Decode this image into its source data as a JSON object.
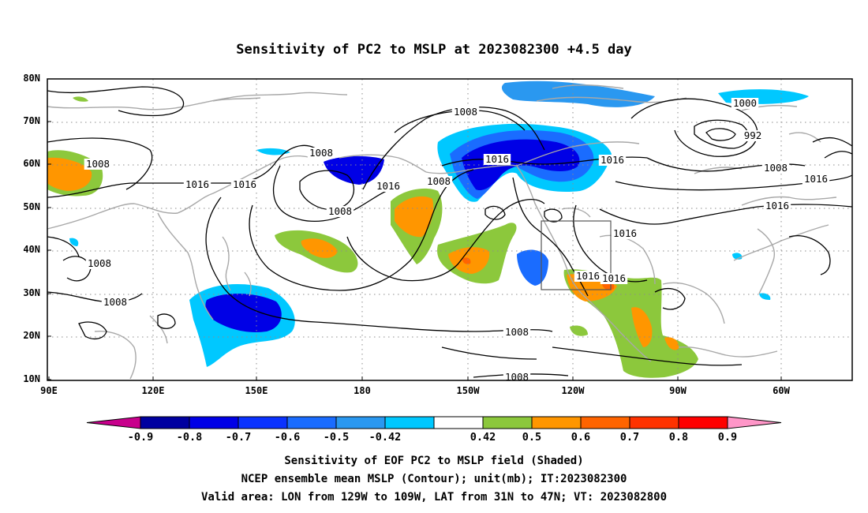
{
  "title": "Sensitivity of PC2 to MSLP at 2023082300 +4.5 day",
  "axes": {
    "x_ticks": [
      "90E",
      "120E",
      "150E",
      "180",
      "150W",
      "120W",
      "90W",
      "60W"
    ],
    "y_ticks": [
      "80N",
      "70N",
      "60N",
      "50N",
      "40N",
      "30N",
      "20N",
      "10N"
    ]
  },
  "contour_labels": [
    "1008",
    "1008",
    "1016",
    "1016",
    "1008",
    "1008",
    "1008",
    "1008",
    "1008",
    "1016",
    "1008",
    "1016",
    "1008",
    "1016",
    "1000",
    "992",
    "1008",
    "1016",
    "1016",
    "1016",
    "1016",
    "1016",
    "1008"
  ],
  "colorbar": {
    "labels": [
      "-0.9",
      "-0.8",
      "-0.7",
      "-0.6",
      "-0.5",
      "-0.42",
      "0.42",
      "0.5",
      "0.6",
      "0.7",
      "0.8",
      "0.9"
    ],
    "colors": [
      "#c8008c",
      "#0000a0",
      "#0000e6",
      "#0a32ff",
      "#1a6cff",
      "#2a98f0",
      "#00c8ff",
      "#ffffff",
      "#8cc83c",
      "#ff9600",
      "#ff6400",
      "#ff3200",
      "#ff0000",
      "#ff96c8"
    ]
  },
  "caption": [
    "Sensitivity of EOF PC2 to MSLP field (Shaded)",
    "NCEP ensemble mean MSLP (Contour); unit(mb); IT:2023082300",
    "Valid area: LON from 129W to 109W, LAT from 31N to 47N; VT: 2023082800"
  ],
  "valid_area": {
    "lon": [
      -129,
      -109
    ],
    "lat": [
      31,
      47
    ]
  }
}
